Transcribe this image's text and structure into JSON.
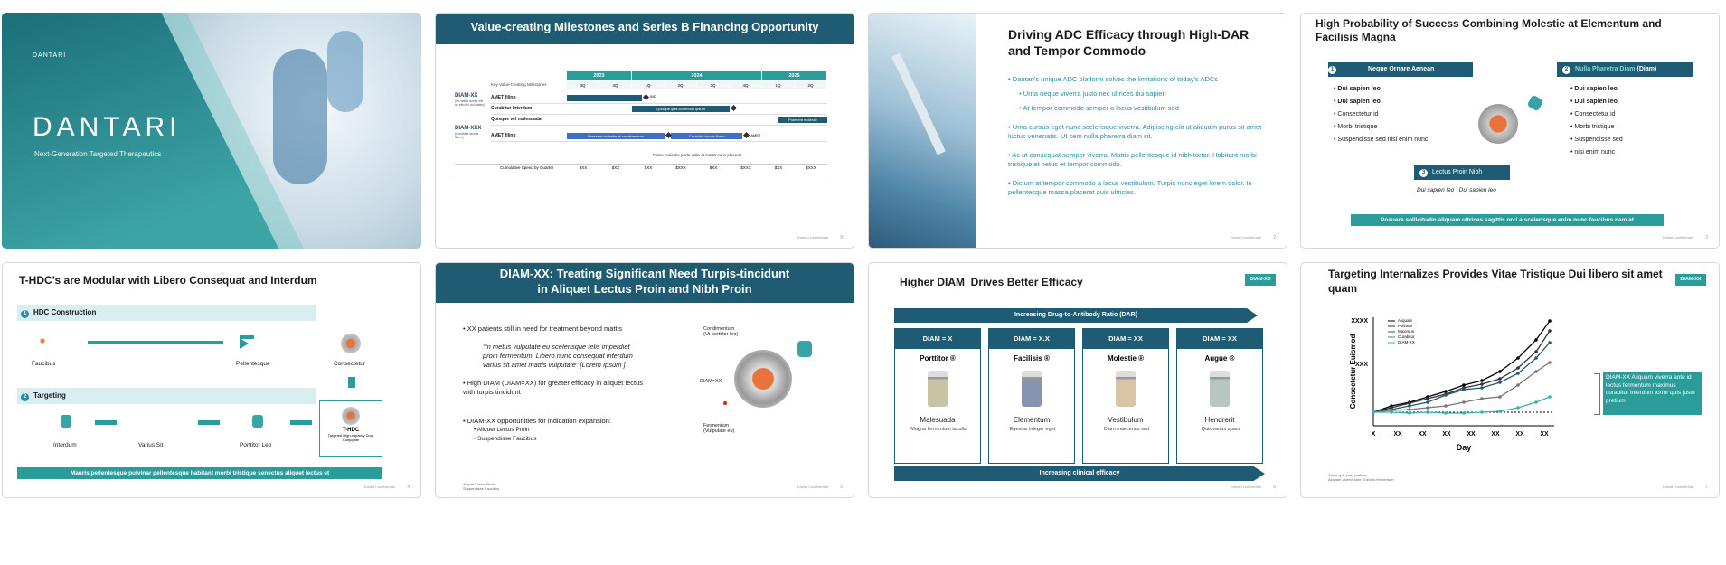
{
  "slides": [
    {
      "logo": "DANTARI",
      "title": "DANTARI",
      "subtitle": "Next-Generation Targeted Therapeutics"
    },
    {
      "title": "Value-creating Milestones and Series B Financing Opportunity",
      "years": [
        "2023",
        "2024",
        "2025"
      ],
      "quarters": [
        "3Q",
        "4Q",
        "1Q",
        "2Q",
        "3Q",
        "4Q",
        "1Q",
        "2Q"
      ],
      "header_label": "Key Value-Creating Milestones",
      "programs": [
        {
          "name": "DIAM-XX",
          "note": "(Ut mattis auctor elit ac efficitur dui mattis)"
        },
        {
          "name": "DIAM-XXX",
          "note": "(Curabitur iaculis libero)"
        }
      ],
      "rows": [
        "AMET filing",
        "Curabitur Interdum",
        "Quisque vel malesuada",
        "AMET filing"
      ],
      "bar_labels": [
        "IND",
        "Quisque quis commodo ipsum",
        "Praesent molestie",
        "Praesent molestie et condimentum",
        "Curabitur iaculis libero",
        "AMET"
      ],
      "note": "— Fusce molestie porta sulla et mattis nunc placerat —",
      "spend_label": "Cumulative Spend by Quarter",
      "spend": [
        "$XX",
        "$XX",
        "$XX",
        "$XXX",
        "$XX",
        "$XXX",
        "$XX",
        "$XXX"
      ],
      "footer": "Dantari confidential",
      "page": "9"
    },
    {
      "title": "Driving ADC Efficacy through High-DAR and Tempor Commodo",
      "bullets": [
        "Dantari’s unique ADC platform solves the limitations of today’s ADCs",
        "Urna neque viverra justo nec ultrices dui sapien",
        "At tempor commodo semper a lacus vestibulum sed",
        "Urna cursus eget nunc scelerisque viverra. Adipiscing elit ut aliquam purus sit amet luctus venenatis. Ut sem nulla pharetra diam sit.",
        "Ac ut consequat semper viverra. Mattis pellentesque id nibh tortor. Habitant morbi tristique et netus et tempor commodo.",
        "Dictum at tempor commodo a lacus vestibulum. Turpis nunc eget lorem dolor. In pellentesque massa placerat duis ultricies."
      ],
      "footer": "Dantari confidential",
      "page": "2"
    },
    {
      "title": "High Probability of Success Combining Molestie at Elementum and Facilisis Magna",
      "box1": {
        "num": "1",
        "title": "Neque Ornare Aenean",
        "items": [
          "Dui sapien leo",
          "Dui sapien leo",
          "Consectetur id",
          "Morbi tristique",
          "Suspendisse sed nisi enim nunc"
        ]
      },
      "box2": {
        "num": "2",
        "title": "Nulla Pharetra Diam",
        "suffix": "(Diam)",
        "items": [
          "Dui sapien leo",
          "Dui sapien leo",
          "Consectetur id",
          "Morbi tristique",
          "Suspendisse sed",
          "nisi enim nunc"
        ]
      },
      "box3": {
        "num": "3",
        "title": "Lectus Proin Nibh",
        "items": [
          "Dui sapien leo",
          "Dui sapien leo"
        ]
      },
      "banner": "Posuere sollicitudin aliquam ultrices sagittis orci a scelerisque enim nunc faucibus nam at",
      "footer": "Dantari confidential",
      "page": "3"
    },
    {
      "title": "T-HDC’s are Modular with Libero Consequat and Interdum",
      "section1": {
        "num": "1",
        "title": "HDC Construction"
      },
      "row1": [
        "Faucibus",
        "Pellentesque",
        "Consectetur"
      ],
      "section2": {
        "num": "2",
        "title": "Targeting"
      },
      "row2": [
        "Interdum",
        "Varius Sit",
        "Porttitor Leo"
      ],
      "result": {
        "title": "T-HDC",
        "subtitle": "Targeted High-capacity Drug Conjugate"
      },
      "banner": "Mauris pellentesque pulvinar pellentesque habitant morbi tristique senectus aliquet lectus et",
      "footer": "Dantari confidential",
      "page": "4"
    },
    {
      "title": [
        "DIAM-XX: Treating Significant Need Turpis-tincidunt",
        "in Aliquet Lectus Proin and Nibh Proin"
      ],
      "bullet1": "XX patients still in need for treatment beyond mattis",
      "quote": "“In metus vulputate eu scelerisque felis imperdiet proin fermentum. Libero nunc consequat interdum varius sit amet mattis vulputate” [Lorem Ipsum ]",
      "bullet2": "High DIAM (DIAM=XX) for greater efficacy in aliquet lectus with turpis tincidunt",
      "bullet3": "DIAM-XX opportunities for indication expansion:",
      "sub": [
        "Aliquet Lectus Proin",
        "Suspendisse Faucibus"
      ],
      "labels": [
        "Condimentum",
        "(Ut porttitor leo)",
        "DIAM=XX",
        "Fermentum",
        "(Vulputate eu)"
      ],
      "footnotes": [
        "Aliquet Lectus Proin",
        "Suspendisse Faucibus"
      ],
      "footer": "Dantari confidential",
      "page": "5"
    },
    {
      "title": "Higher DIAM  Drives Better Efficacy",
      "tag": "DIAM-XX",
      "top_arrow": "Increasing Drug-to-Antibody Ratio (DAR)",
      "columns": [
        {
          "head": "DIAM = X",
          "drug": "Porttitor ®",
          "name": "Malesuada",
          "desc": "Magna fermentum iaculis"
        },
        {
          "head": "DIAM = X.X",
          "drug": "Facilisis ®",
          "name": "Elementum",
          "desc": "Egestas integer eget"
        },
        {
          "head": "DIAM = XX",
          "drug": "Molestie ®",
          "name": "Vestibulum",
          "desc": "Diam maecenas sed"
        },
        {
          "head": "DIAM = XX",
          "drug": "Augue ®",
          "name": "Hendrerit",
          "desc": "Quis varius quam"
        }
      ],
      "bottom_arrow": "Increasing clinical efficacy",
      "footer": "Dantari confidential",
      "page": "6"
    },
    {
      "title": "Targeting Internalizes Provides Vitae Tristique Dui libero sit amet quam",
      "tag": "DIAM-XX",
      "ylabel": "Consectetur Euismod",
      "yticks": [
        "XXXX",
        "XXX"
      ],
      "xlabel": "Day",
      "xticks": [
        "X",
        "XX",
        "XX",
        "XX",
        "XX",
        "XX",
        "XX",
        "XX"
      ],
      "legend": [
        "Aliquam",
        "Pulvinar",
        "Maximus",
        "Curabitur",
        "DIAM-XX"
      ],
      "callout": "DIAM-XX Aliquam viverra ante id lectus fermentum maximus curabitur interdum tortor quis justo pretium",
      "footnotes": [
        "Tortor quis justo pretium",
        "Aliquam viverra ante id lectus fermentum"
      ],
      "footer": "Dantari confidential",
      "page": "7"
    }
  ]
}
